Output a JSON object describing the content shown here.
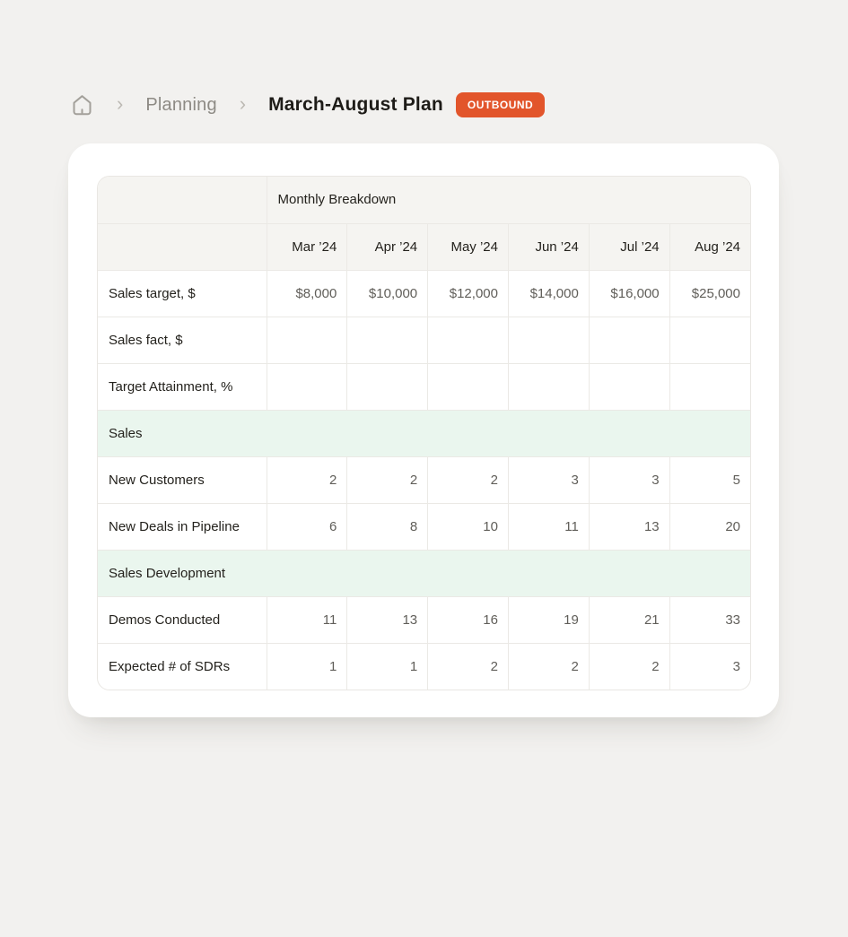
{
  "colors": {
    "page_bg": "#F2F1EF",
    "card_bg": "#FFFFFF",
    "badge_bg": "#E2552B",
    "table_header_bg": "#F5F4F1",
    "section_row_bg": "#EAF6EE",
    "grid_border": "#EBE9E5",
    "value_text": "#605E59",
    "label_text": "#24221D",
    "breadcrumb_muted": "#8D8A84"
  },
  "breadcrumb": {
    "home_icon": "home-icon",
    "separator": "›",
    "parent": "Planning",
    "current": "March-August Plan",
    "badge": "OUTBOUND"
  },
  "table": {
    "group_header": "Monthly Breakdown",
    "columns": [
      "Mar ’24",
      "Apr ’24",
      "May ’24",
      "Jun ’24",
      "Jul ’24",
      "Aug ’24"
    ],
    "rows": [
      {
        "type": "data",
        "label": "Sales target, $",
        "values": [
          "$8,000",
          "$10,000",
          "$12,000",
          "$14,000",
          "$16,000",
          "$25,000"
        ]
      },
      {
        "type": "data",
        "label": "Sales fact, $",
        "values": [
          "",
          "",
          "",
          "",
          "",
          ""
        ]
      },
      {
        "type": "data",
        "label": "Target Attainment, %",
        "values": [
          "",
          "",
          "",
          "",
          "",
          ""
        ]
      },
      {
        "type": "section",
        "label": "Sales"
      },
      {
        "type": "data",
        "label": "New Customers",
        "values": [
          "2",
          "2",
          "2",
          "3",
          "3",
          "5"
        ]
      },
      {
        "type": "data",
        "label": "New Deals in Pipeline",
        "values": [
          "6",
          "8",
          "10",
          "11",
          "13",
          "20"
        ]
      },
      {
        "type": "section",
        "label": "Sales Development"
      },
      {
        "type": "data",
        "label": "Demos Conducted",
        "values": [
          "11",
          "13",
          "16",
          "19",
          "21",
          "33"
        ]
      },
      {
        "type": "data",
        "label": "Expected # of SDRs",
        "values": [
          "1",
          "1",
          "2",
          "2",
          "2",
          "3"
        ]
      }
    ]
  }
}
